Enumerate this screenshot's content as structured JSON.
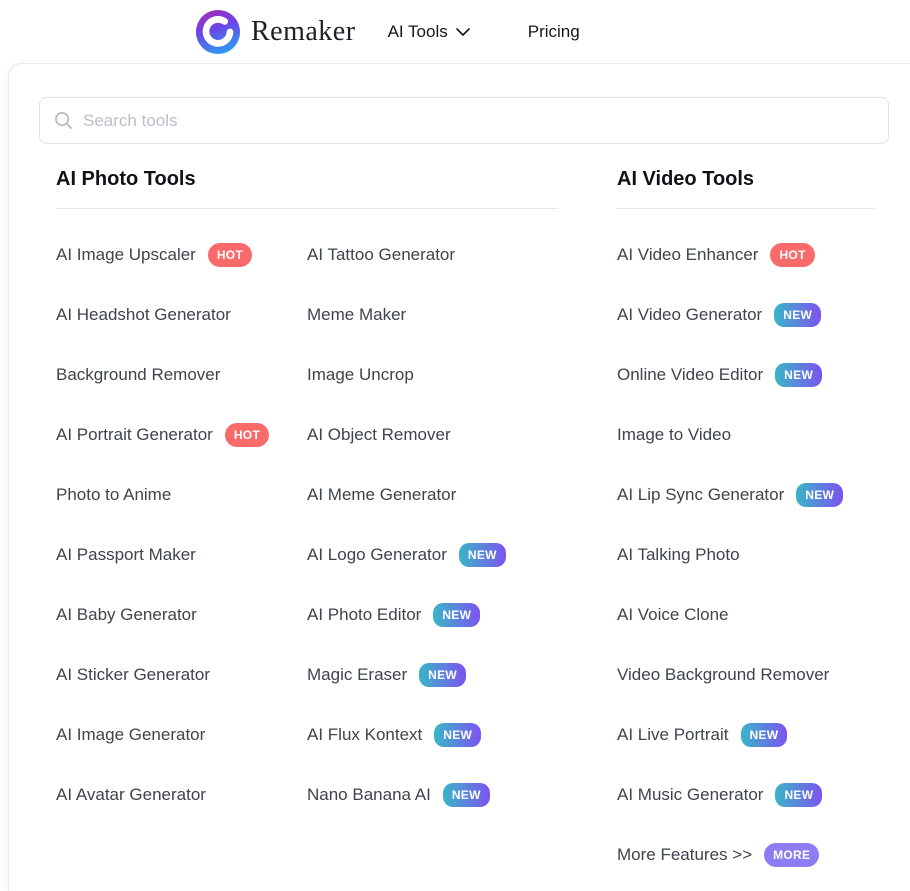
{
  "header": {
    "brand": "Remaker",
    "nav_ai_tools": "AI Tools",
    "nav_pricing": "Pricing"
  },
  "search": {
    "placeholder": "Search tools"
  },
  "sections": [
    {
      "title": "AI Photo Tools",
      "columns": [
        [
          {
            "label": "AI Image Upscaler",
            "badge": "HOT"
          },
          {
            "label": "AI Headshot Generator"
          },
          {
            "label": "Background Remover"
          },
          {
            "label": "AI Portrait Generator",
            "badge": "HOT"
          },
          {
            "label": "Photo to Anime"
          },
          {
            "label": "AI Passport Maker"
          },
          {
            "label": "AI Baby Generator"
          },
          {
            "label": "AI Sticker Generator"
          },
          {
            "label": "AI Image Generator"
          },
          {
            "label": "AI Avatar Generator"
          }
        ],
        [
          {
            "label": "AI Tattoo Generator"
          },
          {
            "label": "Meme Maker"
          },
          {
            "label": "Image Uncrop"
          },
          {
            "label": "AI Object Remover"
          },
          {
            "label": "AI Meme Generator"
          },
          {
            "label": "AI Logo Generator",
            "badge": "NEW"
          },
          {
            "label": "AI Photo Editor",
            "badge": "NEW"
          },
          {
            "label": "Magic Eraser",
            "badge": "NEW"
          },
          {
            "label": "AI Flux Kontext",
            "badge": "NEW"
          },
          {
            "label": "Nano Banana AI",
            "badge": "NEW"
          }
        ]
      ]
    },
    {
      "title": "AI Video Tools",
      "columns": [
        [
          {
            "label": "AI Video Enhancer",
            "badge": "HOT"
          },
          {
            "label": "AI Video Generator",
            "badge": "NEW"
          },
          {
            "label": "Online Video Editor",
            "badge": "NEW"
          },
          {
            "label": "Image to Video"
          },
          {
            "label": "AI Lip Sync Generator",
            "badge": "NEW"
          },
          {
            "label": "AI Talking Photo"
          },
          {
            "label": "AI Voice Clone"
          },
          {
            "label": "Video Background Remover"
          },
          {
            "label": "AI Live Portrait",
            "badge": "NEW"
          },
          {
            "label": "AI Music Generator",
            "badge": "NEW"
          },
          {
            "label": "More Features >>",
            "badge": "MORE"
          }
        ]
      ]
    }
  ],
  "colors": {
    "badge_hot_bg": "#F96B6B",
    "badge_new_gradient_start": "#39B6C8",
    "badge_new_gradient_end": "#7D53EF",
    "badge_more_bg": "#8D7DF2",
    "badge_text": "#FFFFFF",
    "item_text": "#3E444C",
    "section_title_text": "#101218",
    "logo_top": "#A72BB8",
    "logo_mid": "#6A46E8",
    "logo_bottom": "#2D9BF0"
  }
}
